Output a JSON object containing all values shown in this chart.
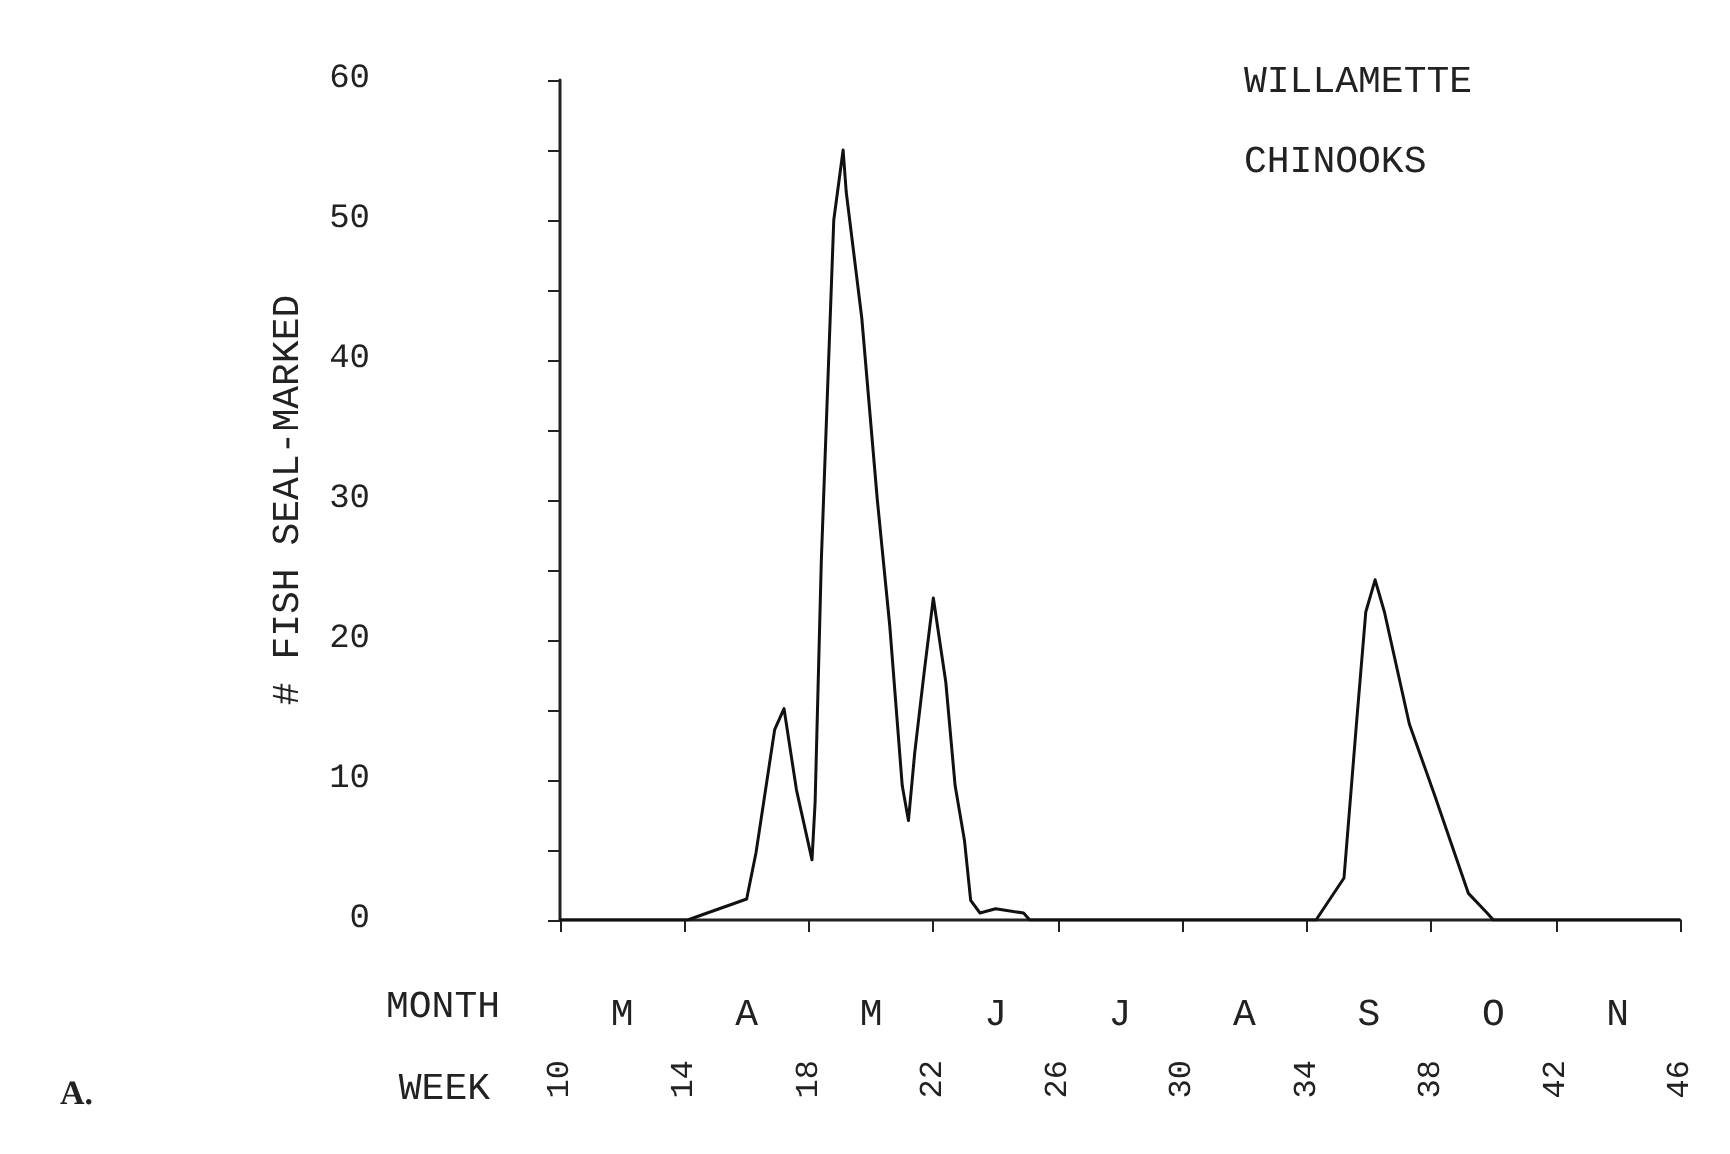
{
  "chart_data": {
    "type": "line",
    "title": "WILLAMETTE CHINOOKS",
    "ylabel": "# FISH SEAL-MARKED",
    "xlabel": "WEEK",
    "x2label": "MONTH",
    "annotations": [
      "A.",
      "M",
      "A",
      "M",
      "J",
      "J",
      "A",
      "S",
      "O",
      "N"
    ],
    "x": [
      10,
      14.1,
      16.0,
      16.3,
      16.9,
      17.2,
      17.6,
      18.1,
      18.2,
      18.4,
      18.8,
      19.1,
      19.2,
      19.7,
      20.2,
      20.6,
      21.0,
      21.2,
      21.4,
      21.7,
      22.0,
      22.4,
      22.7,
      23.0,
      23.2,
      23.5,
      24.0,
      24.9,
      25.1,
      34.3,
      35.2,
      35.6,
      35.9,
      36.2,
      36.5,
      37.3,
      38.1,
      39.2,
      39.8,
      40.0,
      46
    ],
    "series": [
      {
        "color": "#111111",
        "values": [
          0,
          0,
          1.5,
          4.8,
          13.6,
          15.1,
          9.3,
          4.3,
          8.4,
          25.7,
          50,
          55,
          52,
          43,
          30,
          21,
          9.6,
          7.1,
          11.9,
          17.6,
          23,
          17,
          9.6,
          5.7,
          1.4,
          0.5,
          0.8,
          0.5,
          0,
          0,
          3,
          14,
          22,
          24.3,
          22,
          14,
          9,
          1.9,
          0.5,
          0,
          0
        ]
      }
    ],
    "xlim": [
      10,
      46
    ],
    "xticks": [
      10,
      14,
      18,
      22,
      26,
      30,
      34,
      38,
      42,
      46
    ],
    "ylim": [
      0,
      60
    ],
    "yticks": [
      0,
      {
        "value": 5,
        "label": null
      },
      10,
      {
        "value": 15,
        "label": null
      },
      20,
      {
        "value": 25,
        "label": null
      },
      30,
      {
        "value": 35,
        "label": null
      },
      40,
      {
        "value": 45,
        "label": null
      },
      50,
      {
        "value": 55,
        "label": null
      },
      60
    ],
    "grid": false,
    "marker": "none",
    "line_style": "solid"
  }
}
